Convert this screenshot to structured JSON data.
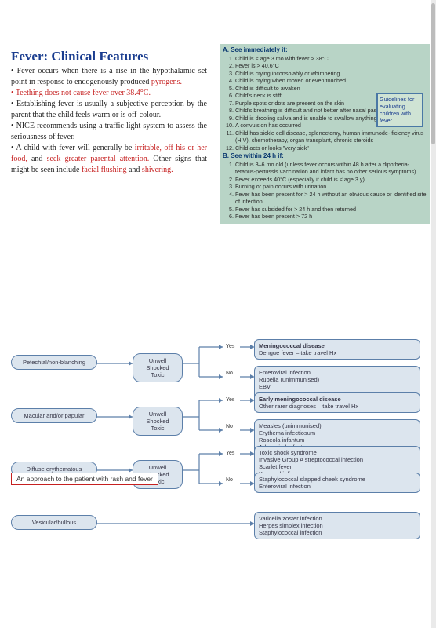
{
  "title": "Fever: Clinical Features",
  "body": {
    "p1a": "• Fever occurs when there is a rise in the hypothalamic set point in response to endogenously produced ",
    "p1r": "pyrogens.",
    "p2r": "• Teething does not cause fever over 38.4°C.",
    "p3": "• Establishing fever is usually a subjective perception by the parent that the child feels warm or is off-colour.",
    "p4": "• NICE recommends using a traffic light system to assess the seriousness of fever.",
    "p5a": "• A child with fever will generally be ",
    "p5r1": "irritable,",
    "p5b": " ",
    "p5r2": "off his or her food,",
    "p5c": " and ",
    "p5r3": "seek greater parental attention.",
    "p5d": " Other signs that might be seen include ",
    "p5r4": "facial flushing",
    "p5e": " and ",
    "p5r5": "shivering.",
    "footer_dot": "•"
  },
  "box": {
    "mini_title": "Guidelines for evaluating children with fever",
    "hdrA": "A. See immediately if:",
    "a": [
      "Child is < age 3 mo with fever > 38°C",
      "Fever is > 40.6°C",
      "Child is crying inconsolably or whimpering",
      "Child is crying when moved or even touched",
      "Child is difficult to awaken",
      "Child's neck is stiff",
      "Purple spots or dots are present on the skin",
      "Child's breathing is difficult and not better after nasal passages are cleared",
      "Child is drooling saliva and is unable to swallow anything",
      "A convulsion has occurred",
      "Child has sickle cell disease, splenectomy, human immunode- ficiency virus (HIV), chemotherapy, organ transplant, chronic steroids",
      "Child acts or looks \"very sick\""
    ],
    "hdrB": "B. See within 24 h if:",
    "b": [
      "Child is 3–6 mo old (unless fever occurs within 48 h after a diphtheria-tetanus-pertussis vaccination and infant has no other serious symptoms)",
      "Fever exceeds 40°C (especially if child is < age 3 y)",
      "Burning or pain occurs with urination",
      "Fever has been present for > 24 h without an obvious cause or identified site of infection",
      "Fever has subsided for > 24 h and then returned",
      "Fever has been present > 72 h"
    ]
  },
  "caption": "An approach to the patient with rash and fever",
  "flow": {
    "mid": "Unwell Shocked Toxic",
    "yes": "Yes",
    "no": "No",
    "rows": [
      {
        "start": "Petechial/non-blanching",
        "yes_b": "Meningococcal disease",
        "yes_t": "Dengue fever – take travel Hx",
        "no_t": "Enteroviral infection\nRubella (unimmunised)\nEBV\nHSP"
      },
      {
        "start": "Macular and/or papular",
        "yes_b": "Early meningococcal disease",
        "yes_t": "Other rarer diagnoses – take travel Hx",
        "no_t": "Measles (unimmunised)\nErythema infectiosum\nRoseola infantum\nAdenoviral infection\nEBV"
      },
      {
        "start": "Diffuse erythematous",
        "yes_t": "Toxic shock syndrome\nInvasive Group A streptococcal infection\nScarlet fever\nKawasaki disease",
        "no_t": "Staphylococcal slapped cheek syndrome\nEnteroviral infection"
      },
      {
        "start": "Vesicular/bullous",
        "yes_t": "Varicella zoster infection\nHerpes simplex infection\nStaphylococcal infection"
      }
    ]
  },
  "style": {
    "title_color": "#1a3d8f",
    "red": "#c62020",
    "box_bg": "#b8d4c6",
    "pill_border": "#5c7fa9",
    "pill_bg": "#dce5ee"
  }
}
